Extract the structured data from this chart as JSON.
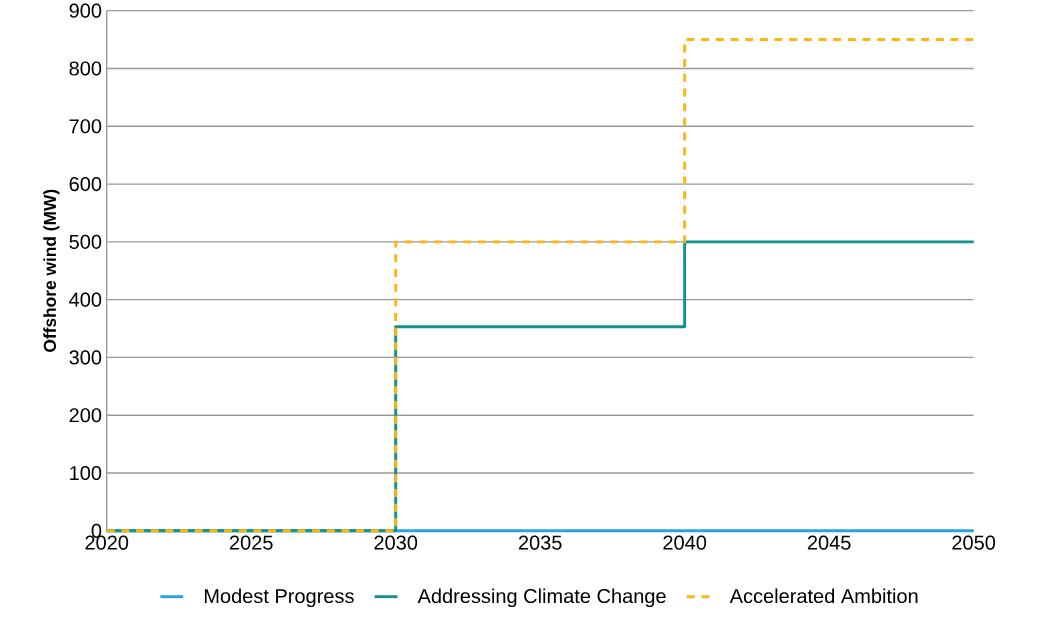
{
  "chart_data": {
    "type": "step",
    "ylabel": "Offshore wind (MW)",
    "x": [
      2020,
      2030,
      2040,
      2050
    ],
    "series": [
      {
        "name": "Modest Progress",
        "color": "#29a3dc",
        "values": [
          0,
          0,
          0,
          0
        ],
        "line_style": "solid"
      },
      {
        "name": "Addressing Climate Change",
        "color": "#11918f",
        "values": [
          0,
          353,
          500,
          500
        ],
        "line_style": "solid"
      },
      {
        "name": "Accelerated Ambition",
        "color": "#fbb615",
        "values": [
          0,
          500,
          850,
          850
        ],
        "line_style": "dashed"
      }
    ],
    "xlim": [
      2020,
      2050
    ],
    "xticks": [
      2020,
      2025,
      2030,
      2035,
      2040,
      2045,
      2050
    ],
    "ylim": [
      0,
      900
    ],
    "yticks": [
      0,
      100,
      200,
      300,
      400,
      500,
      600,
      700,
      800,
      900
    ],
    "grid": "y",
    "legend": "bottom",
    "marker": "none"
  }
}
